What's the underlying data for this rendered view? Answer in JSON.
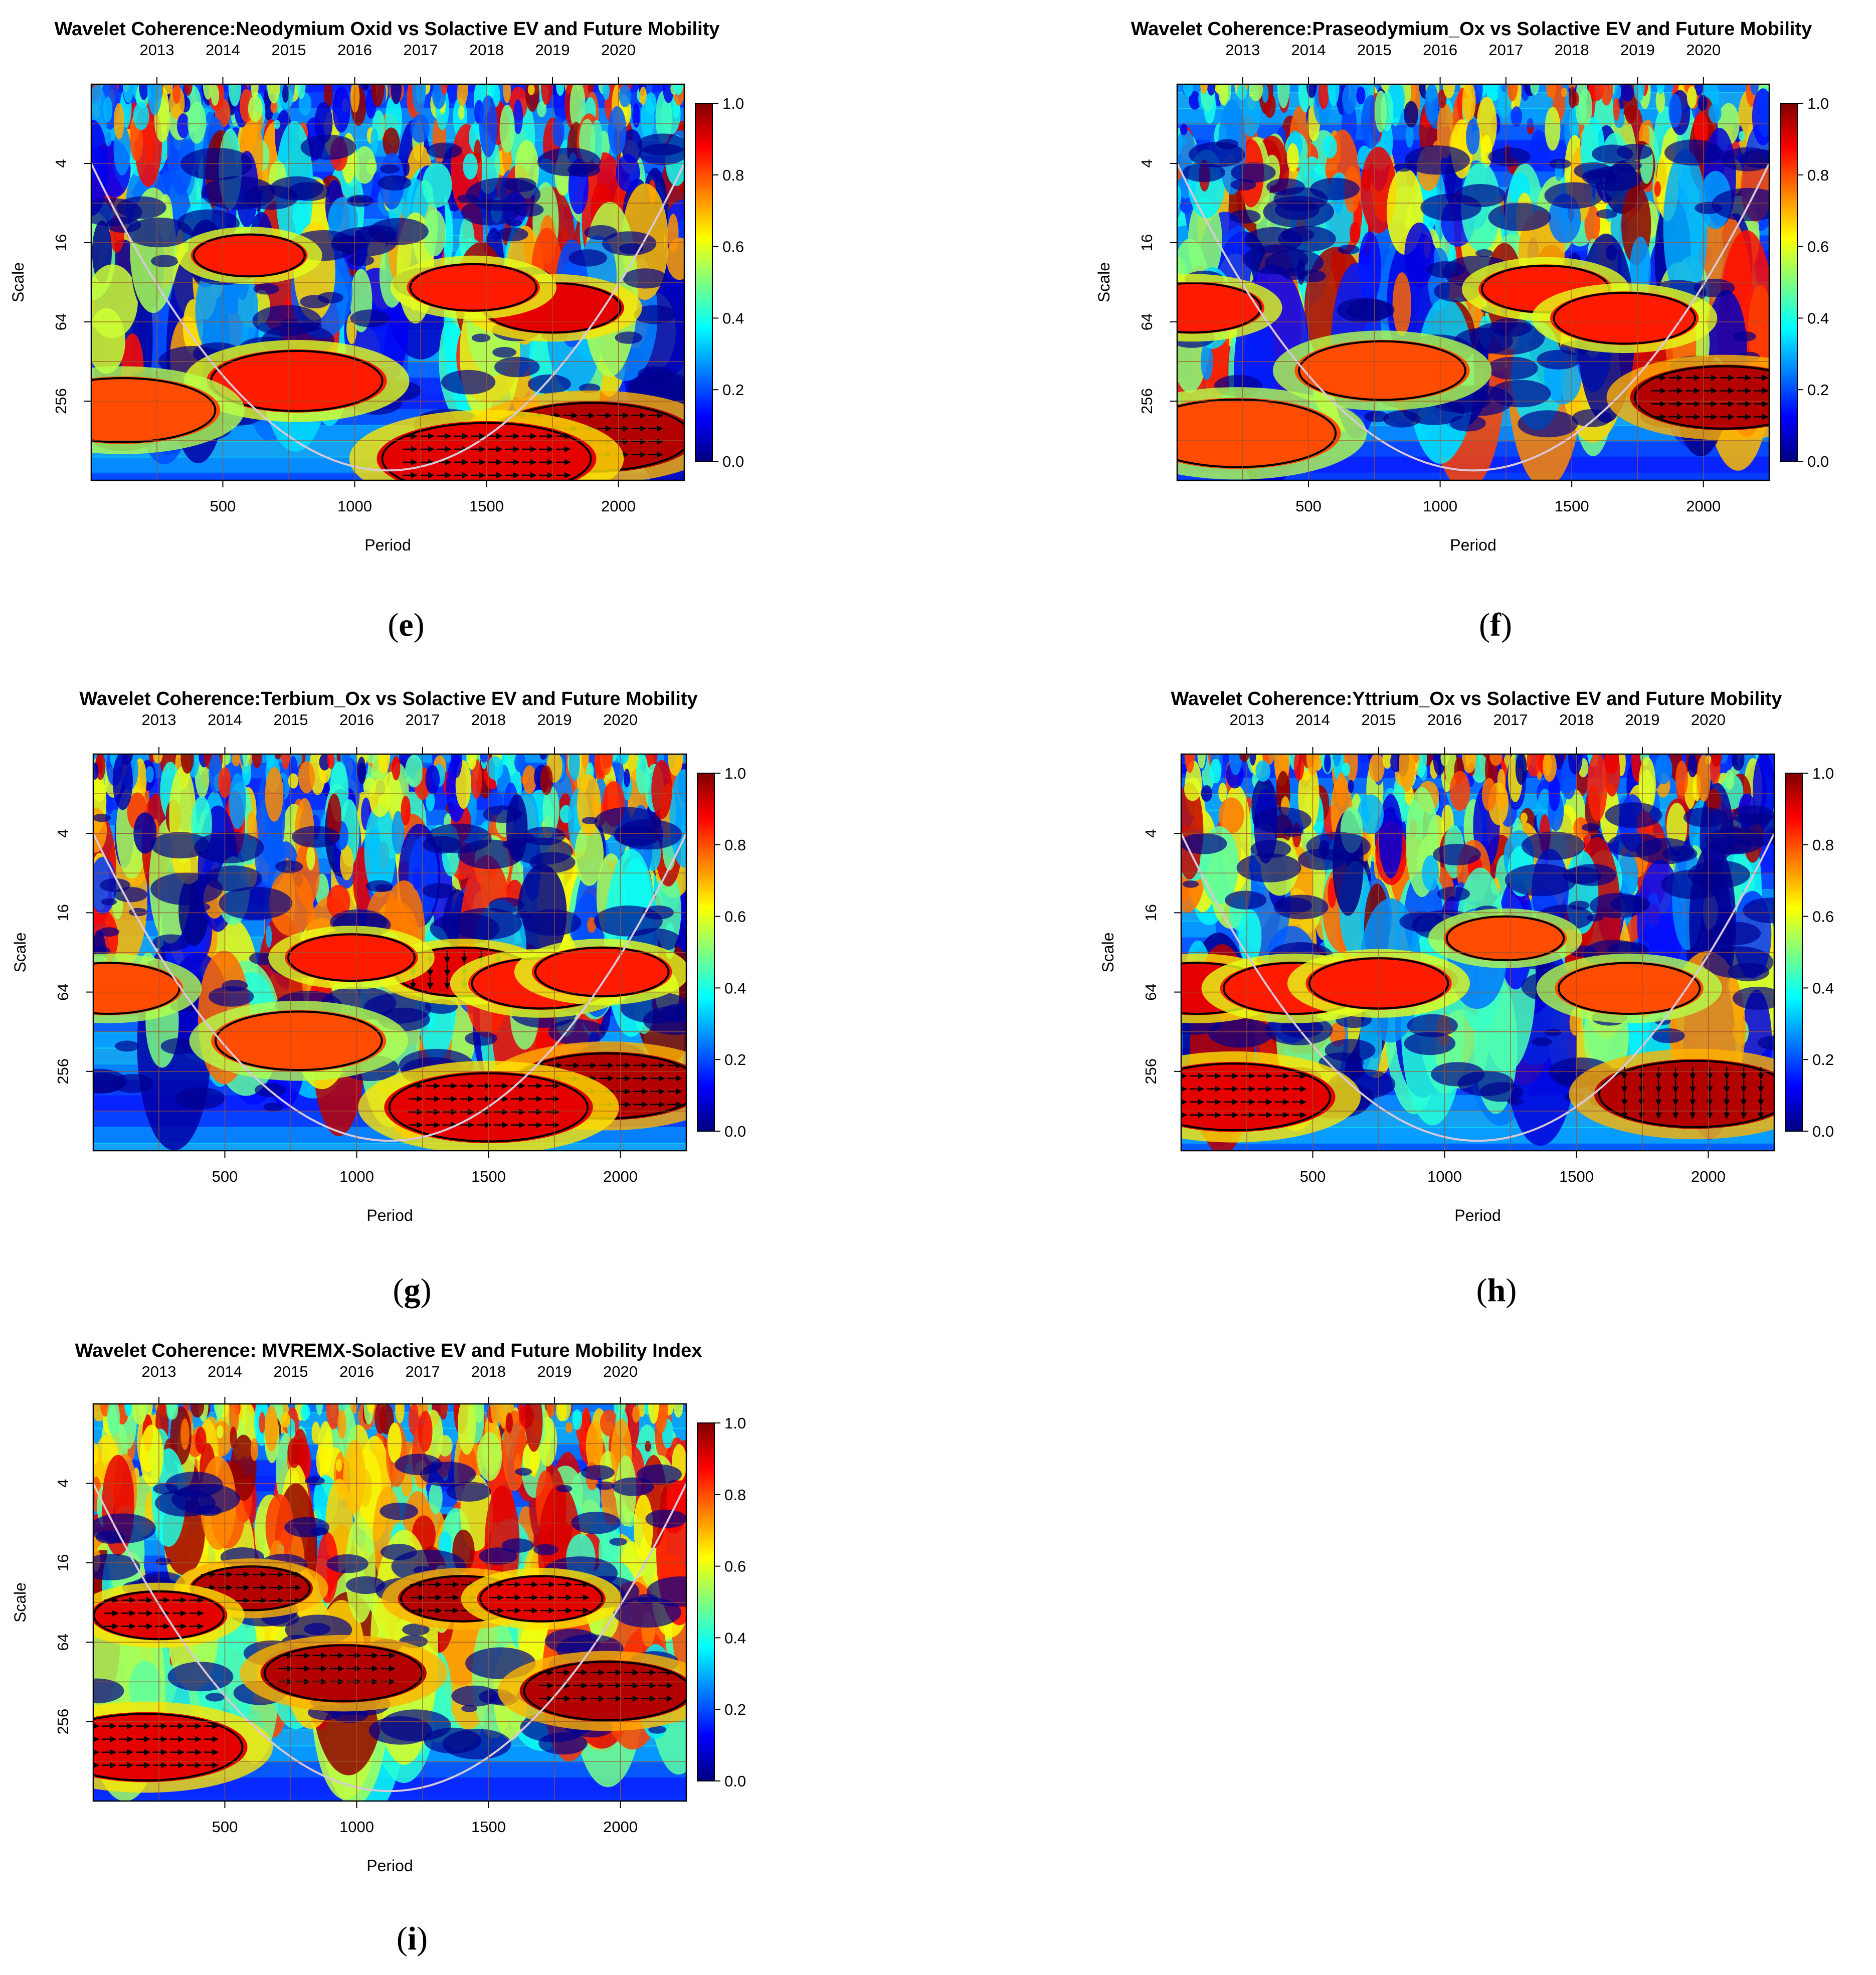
{
  "chart_data": [
    {
      "type": "heatmap",
      "panel_label": "e",
      "title": "Wavelet Coherence:Neodymium Oxid vs Solactive EV and Future Mobility",
      "xlabel": "Period",
      "ylabel": "Scale",
      "x_ticks": [
        500,
        1000,
        1500,
        2000
      ],
      "xlim": [
        1,
        2250
      ],
      "top_ticks": [
        "2013",
        "2014",
        "2015",
        "2016",
        "2017",
        "2018",
        "2019",
        "2020"
      ],
      "top_tick_positions": [
        250,
        500,
        750,
        1000,
        1250,
        1500,
        1750,
        2000
      ],
      "y_ticks": [
        4,
        16,
        64,
        256
      ],
      "y_scale": "log2",
      "ylim": [
        1,
        1024
      ],
      "colorbar": {
        "ticks": [
          "0.0",
          "0.2",
          "0.4",
          "0.6",
          "0.8",
          "1.0"
        ],
        "range": [
          0,
          1
        ],
        "palette": "jet"
      },
      "high_coherence_regions": [
        {
          "x": 1900,
          "scale": 480,
          "value": 0.95,
          "arrows": "right"
        },
        {
          "x": 1500,
          "scale": 700,
          "value": 0.9,
          "arrows": "right"
        },
        {
          "x": 780,
          "scale": 180,
          "value": 0.85
        },
        {
          "x": 1750,
          "scale": 50,
          "value": 0.9
        },
        {
          "x": 1450,
          "scale": 35,
          "value": 0.85
        },
        {
          "x": 600,
          "scale": 20,
          "value": 0.85
        },
        {
          "x": 120,
          "scale": 300,
          "value": 0.8
        }
      ]
    },
    {
      "type": "heatmap",
      "panel_label": "f",
      "title": "Wavelet Coherence:Praseodymium_Ox vs Solactive EV and Future Mobility",
      "xlabel": "Period",
      "ylabel": "Scale",
      "x_ticks": [
        500,
        1000,
        1500,
        2000
      ],
      "xlim": [
        1,
        2250
      ],
      "top_ticks": [
        "2013",
        "2014",
        "2015",
        "2016",
        "2017",
        "2018",
        "2019",
        "2020"
      ],
      "top_tick_positions": [
        250,
        500,
        750,
        1000,
        1250,
        1500,
        1750,
        2000
      ],
      "y_ticks": [
        4,
        16,
        64,
        256
      ],
      "y_scale": "log2",
      "ylim": [
        1,
        1024
      ],
      "colorbar": {
        "ticks": [
          "0.0",
          "0.2",
          "0.4",
          "0.6",
          "0.8",
          "1.0"
        ],
        "range": [
          0,
          1
        ],
        "palette": "jet"
      },
      "high_coherence_regions": [
        {
          "x": 2080,
          "scale": 240,
          "value": 0.95,
          "arrows": "right"
        },
        {
          "x": 1400,
          "scale": 36,
          "value": 0.85
        },
        {
          "x": 1700,
          "scale": 60,
          "value": 0.85
        },
        {
          "x": 780,
          "scale": 150,
          "value": 0.8
        },
        {
          "x": 230,
          "scale": 450,
          "value": 0.8
        },
        {
          "x": 60,
          "scale": 50,
          "value": 0.85
        }
      ]
    },
    {
      "type": "heatmap",
      "panel_label": "g",
      "title": "Wavelet Coherence:Terbium_Ox vs Solactive EV and Future Mobility",
      "xlabel": "Period",
      "ylabel": "Scale",
      "x_ticks": [
        500,
        1000,
        1500,
        2000
      ],
      "xlim": [
        1,
        2250
      ],
      "top_ticks": [
        "2013",
        "2014",
        "2015",
        "2016",
        "2017",
        "2018",
        "2019",
        "2020"
      ],
      "top_tick_positions": [
        250,
        500,
        750,
        1000,
        1250,
        1500,
        1750,
        2000
      ],
      "y_ticks": [
        4,
        16,
        64,
        256
      ],
      "y_scale": "log2",
      "ylim": [
        1,
        1024
      ],
      "colorbar": {
        "ticks": [
          "0.0",
          "0.2",
          "0.4",
          "0.6",
          "0.8",
          "1.0"
        ],
        "range": [
          0,
          1
        ],
        "palette": "jet"
      },
      "high_coherence_regions": [
        {
          "x": 1950,
          "scale": 330,
          "value": 0.95,
          "arrows": "right"
        },
        {
          "x": 1500,
          "scale": 480,
          "value": 0.9,
          "arrows": "right"
        },
        {
          "x": 1400,
          "scale": 45,
          "value": 0.9,
          "arrows": "down"
        },
        {
          "x": 1700,
          "scale": 55,
          "value": 0.85
        },
        {
          "x": 1930,
          "scale": 45,
          "value": 0.85
        },
        {
          "x": 780,
          "scale": 150,
          "value": 0.8
        },
        {
          "x": 980,
          "scale": 35,
          "value": 0.85
        },
        {
          "x": 60,
          "scale": 60,
          "value": 0.8
        }
      ]
    },
    {
      "type": "heatmap",
      "panel_label": "h",
      "title": "Wavelet Coherence:Yttrium_Ox vs Solactive EV and Future Mobility",
      "xlabel": "Period",
      "ylabel": "Scale",
      "x_ticks": [
        500,
        1000,
        1500,
        2000
      ],
      "xlim": [
        1,
        2250
      ],
      "top_ticks": [
        "2013",
        "2014",
        "2015",
        "2016",
        "2017",
        "2018",
        "2019",
        "2020"
      ],
      "top_tick_positions": [
        250,
        500,
        750,
        1000,
        1250,
        1500,
        1750,
        2000
      ],
      "y_ticks": [
        4,
        16,
        64,
        256
      ],
      "y_scale": "log2",
      "ylim": [
        1,
        1024
      ],
      "colorbar": {
        "ticks": [
          "0.0",
          "0.2",
          "0.4",
          "0.6",
          "0.8",
          "1.0"
        ],
        "range": [
          0,
          1
        ],
        "palette": "jet"
      },
      "high_coherence_regions": [
        {
          "x": 1950,
          "scale": 380,
          "value": 0.95,
          "arrows": "down"
        },
        {
          "x": 200,
          "scale": 400,
          "value": 0.9,
          "arrows": "right"
        },
        {
          "x": 60,
          "scale": 60,
          "value": 0.9
        },
        {
          "x": 430,
          "scale": 60,
          "value": 0.85
        },
        {
          "x": 750,
          "scale": 55,
          "value": 0.85
        },
        {
          "x": 1700,
          "scale": 60,
          "value": 0.8
        },
        {
          "x": 1230,
          "scale": 25,
          "value": 0.8
        }
      ]
    },
    {
      "type": "heatmap",
      "panel_label": "i",
      "title": "Wavelet Coherence: MVREMX-Solactive EV and Future Mobility Index",
      "xlabel": "Period",
      "ylabel": "Scale",
      "x_ticks": [
        500,
        1000,
        1500,
        2000
      ],
      "xlim": [
        1,
        2250
      ],
      "top_ticks": [
        "2013",
        "2014",
        "2015",
        "2016",
        "2017",
        "2018",
        "2019",
        "2020"
      ],
      "top_tick_positions": [
        250,
        500,
        750,
        1000,
        1250,
        1500,
        1750,
        2000
      ],
      "y_ticks": [
        4,
        16,
        64,
        256
      ],
      "y_scale": "log2",
      "ylim": [
        1,
        1024
      ],
      "colorbar": {
        "ticks": [
          "0.0",
          "0.2",
          "0.4",
          "0.6",
          "0.8",
          "1.0"
        ],
        "range": [
          0,
          1
        ],
        "palette": "jet"
      },
      "high_coherence_regions": [
        {
          "x": 950,
          "scale": 110,
          "value": 0.95,
          "arrows": "right"
        },
        {
          "x": 1950,
          "scale": 150,
          "value": 0.95,
          "arrows": "right"
        },
        {
          "x": 200,
          "scale": 400,
          "value": 0.9,
          "arrows": "right"
        },
        {
          "x": 1400,
          "scale": 30,
          "value": 0.95,
          "arrows": "right"
        },
        {
          "x": 600,
          "scale": 25,
          "value": 0.95,
          "arrows": "right"
        },
        {
          "x": 250,
          "scale": 40,
          "value": 0.9,
          "arrows": "right"
        },
        {
          "x": 1700,
          "scale": 30,
          "value": 0.9,
          "arrows": "right"
        }
      ]
    }
  ]
}
